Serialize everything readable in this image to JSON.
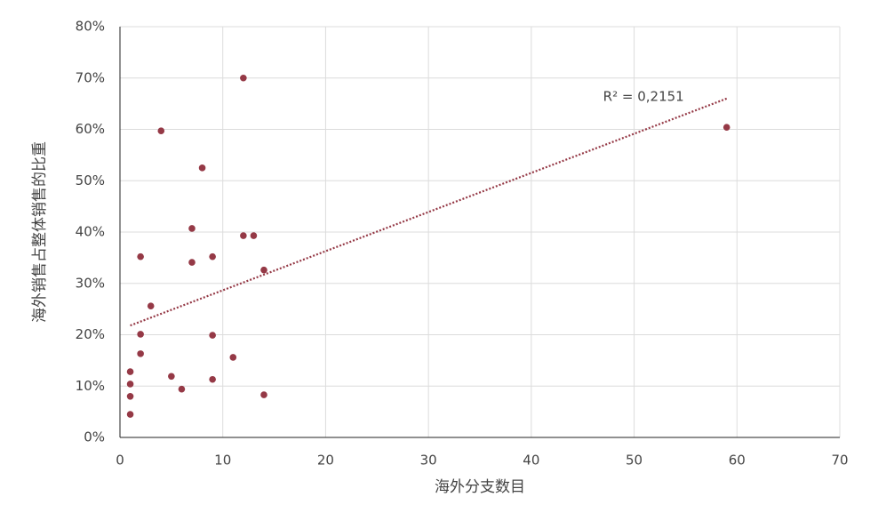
{
  "chart_data": {
    "type": "scatter",
    "xlabel": "海外分支数目",
    "ylabel": "海外销售占整体销售的比重",
    "x": [
      12,
      4,
      59,
      8,
      7,
      12,
      13,
      2,
      9,
      7,
      14,
      3,
      2,
      9,
      2,
      11,
      1,
      5,
      9,
      1,
      6,
      1,
      14,
      1
    ],
    "values": [
      70.0,
      59.7,
      60.4,
      52.5,
      40.7,
      39.3,
      39.3,
      35.2,
      35.2,
      34.1,
      32.6,
      25.6,
      20.1,
      19.9,
      16.3,
      15.6,
      12.8,
      11.9,
      11.3,
      10.4,
      9.4,
      8.0,
      8.3,
      4.5
    ],
    "color": "#953946",
    "trendline": {
      "label": "R² = 0,2151",
      "x": [
        1,
        59
      ],
      "values": [
        21.8,
        66.0
      ],
      "color": "#953946"
    },
    "xlim": [
      0,
      70
    ],
    "xticks": [
      0,
      10,
      20,
      30,
      40,
      50,
      60,
      70
    ],
    "ylim": [
      0,
      80
    ],
    "yticks": [
      {
        "value": 0,
        "label": "0%"
      },
      {
        "value": 10,
        "label": "10%"
      },
      {
        "value": 20,
        "label": "20%"
      },
      {
        "value": 30,
        "label": "30%"
      },
      {
        "value": 40,
        "label": "40%"
      },
      {
        "value": 50,
        "label": "50%"
      },
      {
        "value": 60,
        "label": "60%"
      },
      {
        "value": 70,
        "label": "70%"
      },
      {
        "value": 80,
        "label": "80%"
      }
    ],
    "grid": true
  }
}
